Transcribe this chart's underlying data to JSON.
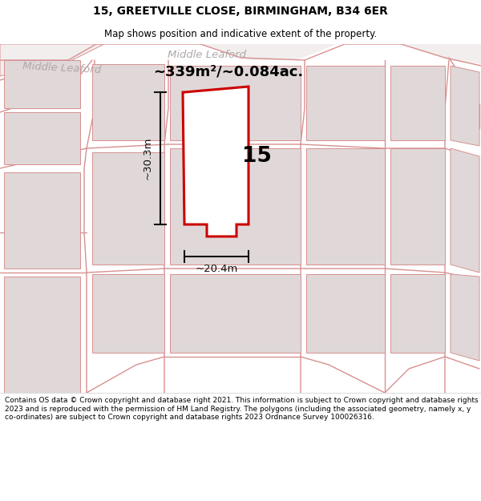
{
  "title_line1": "15, GREETVILLE CLOSE, BIRMINGHAM, B34 6ER",
  "title_line2": "Map shows position and indicative extent of the property.",
  "area_text": "~339m²/~0.084ac.",
  "label_number": "15",
  "dim_width": "~20.4m",
  "dim_height": "~30.3m",
  "street_name_left": "Middle Leaford",
  "street_name_right": "Middle Leaford",
  "footer_text": "Contains OS data © Crown copyright and database right 2021. This information is subject to Crown copyright and database rights 2023 and is reproduced with the permission of HM Land Registry. The polygons (including the associated geometry, namely x, y co-ordinates) are subject to Crown copyright and database rights 2023 Ordnance Survey 100026316.",
  "bg_color": "#f2eeee",
  "building_fill": "#e0d8d8",
  "building_edge": "#d89090",
  "highlight_fill": "#ffffff",
  "highlight_edge": "#cc0000",
  "road_color": "#d89090",
  "dim_color": "#111111",
  "street_text_color": "#b0a8a8",
  "title_fontsize": 10,
  "subtitle_fontsize": 8.5,
  "footer_fontsize": 6.5
}
